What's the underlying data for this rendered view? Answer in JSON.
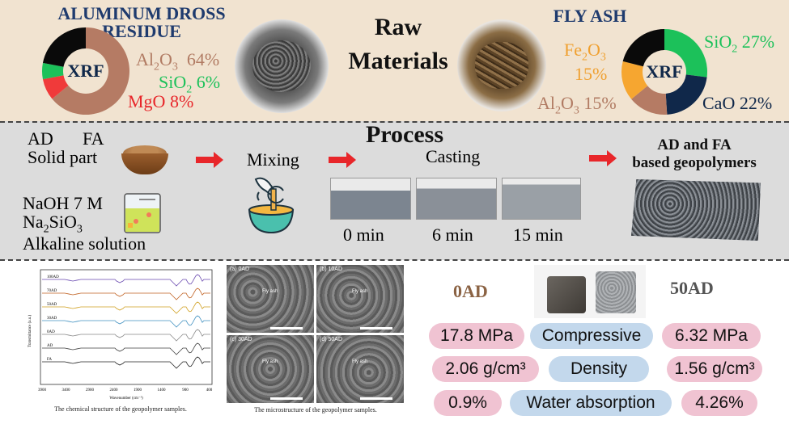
{
  "raw_materials": {
    "title_line1": "Raw",
    "title_line2": "Materials",
    "aluminum_dross": {
      "title": "ALUMINUM DROSS RESIDUE",
      "xrf_label": "XRF",
      "al2o3": {
        "formula": "Al",
        "sub": "2",
        "rest": "O",
        "sub2": "3",
        "pct": "64%"
      },
      "sio2": {
        "formula": "SiO",
        "sub": "2",
        "pct": "6%"
      },
      "mgo": {
        "text": "MgO 8%"
      },
      "donut": [
        {
          "value": 64,
          "color": "#b57b64"
        },
        {
          "value": 8,
          "color": "#f03a3a"
        },
        {
          "value": 6,
          "color": "#1cc15a"
        },
        {
          "value": 22,
          "color": "#0a0a0a"
        }
      ]
    },
    "fly_ash": {
      "title": "FLY ASH",
      "xrf_label": "XRF",
      "fe2o3": {
        "formula": "Fe",
        "sub": "2",
        "rest": "O",
        "sub2": "3",
        "pct": "15%"
      },
      "al2o3": {
        "formula": "Al",
        "sub": "2",
        "rest": "O",
        "sub2": "3",
        "pct": "15%"
      },
      "sio2": {
        "formula": "SiO",
        "sub": "2",
        "pct": "27%"
      },
      "cao": {
        "text": "CaO 22%"
      },
      "donut": [
        {
          "value": 27,
          "color": "#1cc15a"
        },
        {
          "value": 22,
          "color": "#10284a"
        },
        {
          "value": 15,
          "color": "#b57b64"
        },
        {
          "value": 15,
          "color": "#f6a630"
        },
        {
          "value": 21,
          "color": "#0a0a0a"
        }
      ]
    }
  },
  "process": {
    "title": "Process",
    "solid": {
      "ad": "AD",
      "fa": "FA",
      "label": "Solid part"
    },
    "alkaline": {
      "naoh": "NaOH 7 M",
      "na2sio3_a": "Na",
      "na2sio3_sub1": "2",
      "na2sio3_b": "SiO",
      "na2sio3_sub2": "3",
      "label": "Alkaline solution"
    },
    "mixing": "Mixing",
    "casting": "Casting",
    "times": [
      "0 min",
      "6 min",
      "15 min"
    ],
    "result_line1": "AD and FA",
    "result_line2": "based geopolymers"
  },
  "results": {
    "ftir_caption": "The chemical structure of the geopolymer samples.",
    "sem_caption": "The microstructure of the geopolymer samples.",
    "sem_panels": [
      {
        "tag": "(a)",
        "name": "0AD",
        "note": "Fly ash"
      },
      {
        "tag": "(b)",
        "name": "10AD",
        "note": "Fly ash"
      },
      {
        "tag": "(c)",
        "name": "30AD",
        "note": "Fly ash"
      },
      {
        "tag": "(d)",
        "name": "50AD",
        "note": "Fly ash"
      }
    ],
    "ftir_samples": [
      "100AD",
      "70AD",
      "50AD",
      "30AD",
      "0AD",
      "AD",
      "FA"
    ],
    "ftir_xaxis": [
      "3900",
      "3400",
      "2900",
      "2400",
      "1900",
      "1400",
      "900",
      "400"
    ],
    "ftir_xlabel": "Wavenumber (cm⁻¹)",
    "ftir_ylabel": "Transmittance (a.u.)",
    "left_sample": "0AD",
    "right_sample": "50AD",
    "rows": [
      {
        "left": "17.8 MPa",
        "property": "Compressive",
        "right": "6.32 MPa"
      },
      {
        "left": "2.06 g/cm³",
        "property": "Density",
        "right": "1.56 g/cm³"
      },
      {
        "left": "0.9%",
        "property": "Water absorption",
        "right": "4.26%"
      }
    ]
  }
}
